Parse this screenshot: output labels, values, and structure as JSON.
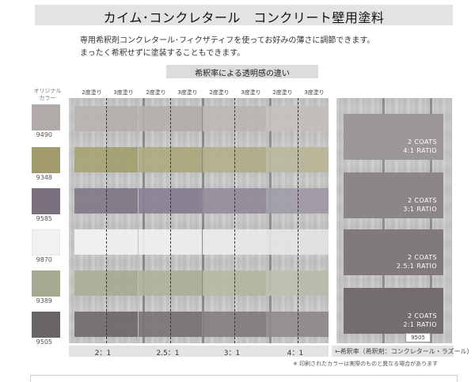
{
  "title": "カイム･コンクレタール　コンクリート壁用塗料",
  "description": [
    "専用希釈剤コンクレタール･フィクザティフを使ってお好みの薄さに調節できます。",
    "まったく希釈せずに塗装することもできます。"
  ],
  "subtitle": "希釈率による透明感の違い",
  "original_label": "オリジナル カラー",
  "coat_headers": [
    "2度塗り",
    "3度塗り",
    "2度塗り",
    "3度塗り",
    "2度塗り",
    "3度塗り",
    "2度塗り",
    "3度塗り"
  ],
  "colors": [
    {
      "code": "9490",
      "hex": "#b0aba8"
    },
    {
      "code": "9348",
      "hex": "#a09a6c"
    },
    {
      "code": "9585",
      "hex": "#7a7080"
    },
    {
      "code": "9870",
      "hex": "#f1f1f1"
    },
    {
      "code": "9389",
      "hex": "#a7a890"
    },
    {
      "code": "9505",
      "hex": "#6a6565"
    }
  ],
  "samples": [
    [
      "#b7b3b1",
      "#b3afad",
      "#b4b0ae",
      "#b1acaa",
      "#bcb9b6",
      "#b9b5b3",
      "#c3c0be",
      "#c0bdba"
    ],
    [
      "#a8a476",
      "#a29e6f",
      "#aeab80",
      "#aaa67a",
      "#b3b08c",
      "#afac86",
      "#bbb99c",
      "#b8b596"
    ],
    [
      "#827a8a",
      "#7d7585",
      "#898193",
      "#847c8d",
      "#958e9c",
      "#908998",
      "#a29da8",
      "#9d98a4"
    ],
    [
      "#f3f3f3",
      "#f1f1f1",
      "#f0f0f0",
      "#eeeeee",
      "#ebebeb",
      "#e9e9e9",
      "#e5e5e5",
      "#e3e3e3"
    ],
    [
      "#adae96",
      "#a9aa92",
      "#b1b29c",
      "#adae98",
      "#b7b8a4",
      "#b3b4a0",
      "#bebfae",
      "#babbaa"
    ],
    [
      "#716c6c",
      "#6d6868",
      "#7a7575",
      "#767171",
      "#858080",
      "#817c7c",
      "#918d8d",
      "#8e8989"
    ]
  ],
  "big_samples": [
    {
      "line1": "2 COATS",
      "line2": "4:1 RATIO",
      "hex": "#9a9796"
    },
    {
      "line1": "2 COATS",
      "line2": "3:1 RATIO",
      "hex": "#8b8786"
    },
    {
      "line1": "2 COATS",
      "line2": "2.5:1 RATIO",
      "hex": "#807b7a"
    },
    {
      "line1": "2 COATS",
      "line2": "2:1 RATIO",
      "hex": "#736e6d"
    }
  ],
  "big_code": "9505",
  "ratios": [
    "2：1",
    "2.5：1",
    "3：1",
    "4：1"
  ],
  "legend": "←希釈率（希釈剤：コンクレタール・ラズール）",
  "note": "※ 印刷されたカラーは実際のものと異なる場合があります"
}
